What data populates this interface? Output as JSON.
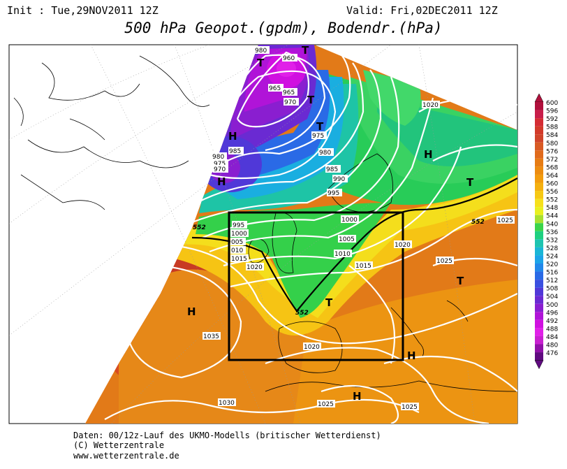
{
  "header": {
    "init": "Init : Tue,29NOV2011 12Z",
    "valid": "Valid: Fri,02DEC2011 12Z",
    "title": "500 hPa Geopot.(gpdm), Bodendr.(hPa)"
  },
  "footer": {
    "line1": "Daten: 00/12z-Lauf des UKMO-Modells (britischer Wetterdienst)",
    "line2": "(C) Wetterzentrale",
    "line3": "www.wetterzentrale.de"
  },
  "colorbar": {
    "levels": [
      "600",
      "596",
      "592",
      "588",
      "584",
      "580",
      "576",
      "572",
      "568",
      "564",
      "560",
      "556",
      "552",
      "548",
      "544",
      "540",
      "536",
      "532",
      "528",
      "524",
      "520",
      "516",
      "512",
      "508",
      "504",
      "500",
      "496",
      "492",
      "488",
      "484",
      "480",
      "476"
    ],
    "colors": [
      "#b0103c",
      "#c81e4a",
      "#d42c34",
      "#d23a2a",
      "#d0442a",
      "#d85a24",
      "#e06a1c",
      "#e67c14",
      "#ec8c10",
      "#f29c0e",
      "#f4b010",
      "#f6c814",
      "#f6e01c",
      "#e8f020",
      "#a8e030",
      "#3ad44a",
      "#1ed080",
      "#1ec4b0",
      "#1ab6d6",
      "#1ca4e8",
      "#2288ea",
      "#2a6ae6",
      "#3a50e0",
      "#5038d8",
      "#6a2ad2",
      "#8a1ed0",
      "#b014d8",
      "#d010e0",
      "#e020e8",
      "#c820d0",
      "#9010a8",
      "#600a80"
    ]
  },
  "map_labels": {
    "highs": [
      "H",
      "H",
      "H",
      "H",
      "H",
      "H"
    ],
    "lows": [
      "T",
      "T",
      "T",
      "T",
      "T",
      "T",
      "T"
    ],
    "isobars": [
      "980",
      "960",
      "965",
      "965",
      "970",
      "975",
      "980",
      "985",
      "990",
      "995",
      "980",
      "975",
      "970",
      "985",
      "995",
      "1000",
      "005",
      "010",
      "1015",
      "1020",
      "1000",
      "1005",
      "1010",
      "1015",
      "1020",
      "1020",
      "1025",
      "1025",
      "1035",
      "1030",
      "1020",
      "1025",
      "1025"
    ],
    "contour_552": [
      "552",
      "552",
      "552"
    ]
  }
}
